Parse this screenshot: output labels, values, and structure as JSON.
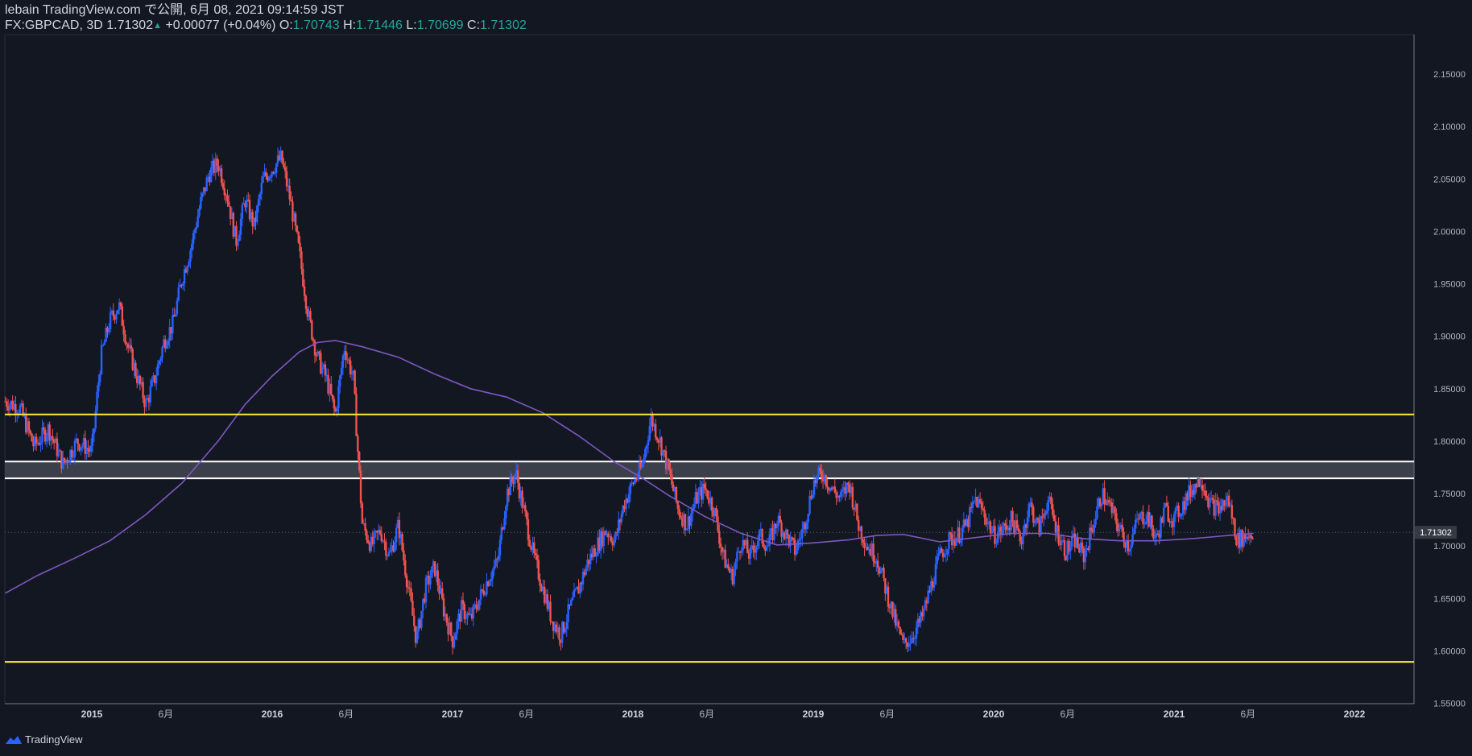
{
  "header": {
    "publish_line": "lebain TradingView.com で公開, 6月 08, 2021 09:14:59 JST",
    "symbol": "FX:GBPCAD, 3D",
    "last": "1.71302",
    "change": "+0.00077 (+0.04%)",
    "o_label": "O:",
    "o_value": "1.70743",
    "h_label": "H:",
    "h_value": "1.71446",
    "l_label": "L:",
    "l_value": "1.70699",
    "c_label": "C:",
    "c_value": "1.71302"
  },
  "footer": {
    "brand": "TradingView"
  },
  "colors": {
    "background": "#131722",
    "up": "#2962ff",
    "down": "#ef5350",
    "ma": "#7e57c2",
    "level_yellow": "#ffeb3b",
    "zone_white": "#ffffff",
    "axis_text": "#b2b5be",
    "price_tag": "#363a45"
  },
  "chart_data": {
    "type": "candlestick",
    "symbol": "FX:GBPCAD",
    "timeframe": "3D",
    "y_range": [
      1.525,
      2.16
    ],
    "x_range": [
      2014.52,
      2022.25
    ],
    "y_ticks": [
      "2.15000",
      "2.10000",
      "2.05000",
      "2.00000",
      "1.95000",
      "1.90000",
      "1.85000",
      "1.80000",
      "1.75000",
      "1.70000",
      "1.65000",
      "1.60000",
      "1.55000"
    ],
    "x_ticks": [
      {
        "label": "2015",
        "t": 2015.0
      },
      {
        "label": "6月",
        "t": 2015.41
      },
      {
        "label": "2016",
        "t": 2016.0
      },
      {
        "label": "6月",
        "t": 2016.41
      },
      {
        "label": "2017",
        "t": 2017.0
      },
      {
        "label": "6月",
        "t": 2017.41
      },
      {
        "label": "2018",
        "t": 2018.0
      },
      {
        "label": "6月",
        "t": 2018.41
      },
      {
        "label": "2019",
        "t": 2019.0
      },
      {
        "label": "6月",
        "t": 2019.41
      },
      {
        "label": "2020",
        "t": 2020.0
      },
      {
        "label": "6月",
        "t": 2020.41
      },
      {
        "label": "2021",
        "t": 2021.0
      },
      {
        "label": "6月",
        "t": 2021.41
      },
      {
        "label": "2022",
        "t": 2022.0
      }
    ],
    "current_price": "1.71302",
    "current_value": 1.71302,
    "levels": [
      {
        "name": "resistance",
        "value": 1.8255,
        "color": "#ffeb3b"
      },
      {
        "name": "support",
        "value": 1.5895,
        "color": "#ffeb3b"
      }
    ],
    "zone": {
      "top": 1.7805,
      "bottom": 1.7645
    },
    "price_path": [
      [
        2014.52,
        1.838
      ],
      [
        2014.6,
        1.832
      ],
      [
        2014.68,
        1.795
      ],
      [
        2014.76,
        1.812
      ],
      [
        2014.84,
        1.778
      ],
      [
        2014.92,
        1.8
      ],
      [
        2015.0,
        1.79
      ],
      [
        2015.05,
        1.88
      ],
      [
        2015.1,
        1.915
      ],
      [
        2015.15,
        1.93
      ],
      [
        2015.2,
        1.89
      ],
      [
        2015.25,
        1.862
      ],
      [
        2015.3,
        1.835
      ],
      [
        2015.35,
        1.86
      ],
      [
        2015.4,
        1.895
      ],
      [
        2015.45,
        1.912
      ],
      [
        2015.5,
        1.955
      ],
      [
        2015.55,
        1.985
      ],
      [
        2015.6,
        2.025
      ],
      [
        2015.65,
        2.055
      ],
      [
        2015.7,
        2.065
      ],
      [
        2015.75,
        2.035
      ],
      [
        2015.8,
        1.99
      ],
      [
        2015.85,
        2.03
      ],
      [
        2015.9,
        2.005
      ],
      [
        2015.95,
        2.05
      ],
      [
        2016.0,
        2.06
      ],
      [
        2016.05,
        2.07
      ],
      [
        2016.1,
        2.03
      ],
      [
        2016.15,
        1.98
      ],
      [
        2016.2,
        1.92
      ],
      [
        2016.25,
        1.88
      ],
      [
        2016.3,
        1.86
      ],
      [
        2016.35,
        1.825
      ],
      [
        2016.4,
        1.89
      ],
      [
        2016.45,
        1.86
      ],
      [
        2016.5,
        1.72
      ],
      [
        2016.55,
        1.7
      ],
      [
        2016.6,
        1.715
      ],
      [
        2016.65,
        1.69
      ],
      [
        2016.7,
        1.72
      ],
      [
        2016.75,
        1.665
      ],
      [
        2016.8,
        1.61
      ],
      [
        2016.85,
        1.66
      ],
      [
        2016.9,
        1.68
      ],
      [
        2016.95,
        1.64
      ],
      [
        2017.0,
        1.61
      ],
      [
        2017.05,
        1.64
      ],
      [
        2017.1,
        1.63
      ],
      [
        2017.15,
        1.65
      ],
      [
        2017.2,
        1.67
      ],
      [
        2017.25,
        1.685
      ],
      [
        2017.3,
        1.75
      ],
      [
        2017.35,
        1.77
      ],
      [
        2017.4,
        1.73
      ],
      [
        2017.45,
        1.69
      ],
      [
        2017.5,
        1.66
      ],
      [
        2017.55,
        1.63
      ],
      [
        2017.6,
        1.615
      ],
      [
        2017.65,
        1.64
      ],
      [
        2017.7,
        1.66
      ],
      [
        2017.75,
        1.685
      ],
      [
        2017.8,
        1.7
      ],
      [
        2017.85,
        1.715
      ],
      [
        2017.9,
        1.705
      ],
      [
        2017.95,
        1.74
      ],
      [
        2018.0,
        1.76
      ],
      [
        2018.05,
        1.775
      ],
      [
        2018.1,
        1.822
      ],
      [
        2018.15,
        1.8
      ],
      [
        2018.2,
        1.77
      ],
      [
        2018.25,
        1.735
      ],
      [
        2018.3,
        1.72
      ],
      [
        2018.35,
        1.745
      ],
      [
        2018.4,
        1.755
      ],
      [
        2018.45,
        1.735
      ],
      [
        2018.5,
        1.69
      ],
      [
        2018.55,
        1.67
      ],
      [
        2018.6,
        1.705
      ],
      [
        2018.65,
        1.69
      ],
      [
        2018.7,
        1.71
      ],
      [
        2018.75,
        1.7
      ],
      [
        2018.8,
        1.725
      ],
      [
        2018.85,
        1.71
      ],
      [
        2018.9,
        1.695
      ],
      [
        2018.95,
        1.72
      ],
      [
        2019.0,
        1.76
      ],
      [
        2019.05,
        1.77
      ],
      [
        2019.1,
        1.755
      ],
      [
        2019.15,
        1.745
      ],
      [
        2019.2,
        1.76
      ],
      [
        2019.25,
        1.72
      ],
      [
        2019.3,
        1.7
      ],
      [
        2019.35,
        1.69
      ],
      [
        2019.4,
        1.66
      ],
      [
        2019.45,
        1.63
      ],
      [
        2019.5,
        1.605
      ],
      [
        2019.55,
        1.615
      ],
      [
        2019.6,
        1.63
      ],
      [
        2019.65,
        1.66
      ],
      [
        2019.7,
        1.69
      ],
      [
        2019.75,
        1.705
      ],
      [
        2019.8,
        1.71
      ],
      [
        2019.85,
        1.72
      ],
      [
        2019.9,
        1.745
      ],
      [
        2019.95,
        1.73
      ],
      [
        2020.0,
        1.71
      ],
      [
        2020.05,
        1.715
      ],
      [
        2020.1,
        1.725
      ],
      [
        2020.15,
        1.705
      ],
      [
        2020.2,
        1.74
      ],
      [
        2020.25,
        1.715
      ],
      [
        2020.3,
        1.745
      ],
      [
        2020.35,
        1.715
      ],
      [
        2020.4,
        1.695
      ],
      [
        2020.45,
        1.705
      ],
      [
        2020.5,
        1.69
      ],
      [
        2020.55,
        1.72
      ],
      [
        2020.6,
        1.75
      ],
      [
        2020.65,
        1.735
      ],
      [
        2020.7,
        1.715
      ],
      [
        2020.75,
        1.7
      ],
      [
        2020.8,
        1.725
      ],
      [
        2020.85,
        1.73
      ],
      [
        2020.9,
        1.705
      ],
      [
        2020.95,
        1.735
      ],
      [
        2021.0,
        1.725
      ],
      [
        2021.05,
        1.74
      ],
      [
        2021.1,
        1.755
      ],
      [
        2021.15,
        1.765
      ],
      [
        2021.2,
        1.74
      ],
      [
        2021.25,
        1.735
      ],
      [
        2021.3,
        1.745
      ],
      [
        2021.35,
        1.705
      ],
      [
        2021.4,
        1.71
      ],
      [
        2021.44,
        1.713
      ]
    ],
    "ma_path": [
      [
        2014.52,
        1.655
      ],
      [
        2014.7,
        1.672
      ],
      [
        2014.9,
        1.688
      ],
      [
        2015.1,
        1.705
      ],
      [
        2015.3,
        1.73
      ],
      [
        2015.5,
        1.76
      ],
      [
        2015.7,
        1.8
      ],
      [
        2015.85,
        1.835
      ],
      [
        2016.0,
        1.862
      ],
      [
        2016.15,
        1.885
      ],
      [
        2016.25,
        1.894
      ],
      [
        2016.35,
        1.896
      ],
      [
        2016.5,
        1.89
      ],
      [
        2016.7,
        1.88
      ],
      [
        2016.9,
        1.864
      ],
      [
        2017.1,
        1.85
      ],
      [
        2017.3,
        1.842
      ],
      [
        2017.5,
        1.827
      ],
      [
        2017.7,
        1.805
      ],
      [
        2017.9,
        1.78
      ],
      [
        2018.05,
        1.765
      ],
      [
        2018.2,
        1.748
      ],
      [
        2018.4,
        1.728
      ],
      [
        2018.6,
        1.712
      ],
      [
        2018.8,
        1.701
      ],
      [
        2019.0,
        1.703
      ],
      [
        2019.2,
        1.706
      ],
      [
        2019.35,
        1.71
      ],
      [
        2019.5,
        1.711
      ],
      [
        2019.7,
        1.704
      ],
      [
        2019.9,
        1.708
      ],
      [
        2020.1,
        1.712
      ],
      [
        2020.3,
        1.712
      ],
      [
        2020.5,
        1.707
      ],
      [
        2020.7,
        1.705
      ],
      [
        2020.9,
        1.705
      ],
      [
        2021.1,
        1.707
      ],
      [
        2021.3,
        1.71
      ],
      [
        2021.44,
        1.712
      ]
    ]
  }
}
